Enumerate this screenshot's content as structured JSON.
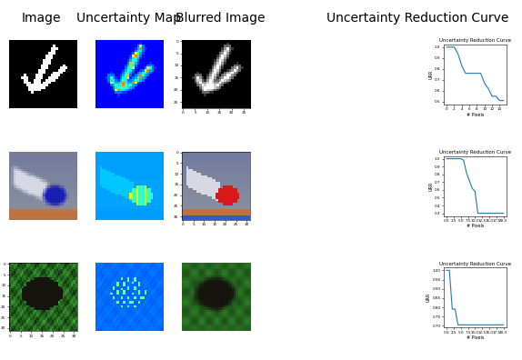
{
  "column_titles": [
    "Image",
    "Uncertainty Map",
    "Blurred Image",
    "Uncertainty Reduction Curve"
  ],
  "chart_data": [
    {
      "type": "image",
      "tick_labels": false
    },
    {
      "type": "image",
      "tick_labels": false
    },
    {
      "type": "image",
      "xlim": [
        -0.5,
        27.5
      ],
      "ylim": [
        27.5,
        -0.5
      ],
      "xticks": [
        0,
        5,
        10,
        15,
        20,
        25
      ],
      "yticks": [
        0,
        5,
        10,
        15,
        20,
        25
      ]
    },
    {
      "type": "line",
      "title": "Uncertainty Reduction Curve",
      "x_label": "# Pixels",
      "y_label": "URR",
      "x": [
        0,
        1,
        2,
        3,
        4,
        5,
        6,
        7,
        8,
        9,
        10,
        11,
        12,
        13,
        14,
        15
      ],
      "values": [
        1.0,
        1.0,
        1.0,
        0.94,
        0.83,
        0.76,
        0.76,
        0.76,
        0.76,
        0.76,
        0.67,
        0.62,
        0.55,
        0.55,
        0.51,
        0.51
      ],
      "color": "#1f77b4",
      "xlim": [
        -0.75,
        15.75
      ],
      "ylim": [
        0.475,
        1.025
      ],
      "xticks": [
        0,
        2,
        4,
        6,
        8,
        10,
        12,
        14
      ],
      "yticks": [
        0.5,
        0.6,
        0.7,
        0.8,
        0.9,
        1.0
      ]
    },
    {
      "type": "image",
      "tick_labels": false
    },
    {
      "type": "image",
      "tick_labels": false
    },
    {
      "type": "image",
      "xlim": [
        -0.5,
        31.5
      ],
      "ylim": [
        31.5,
        -0.5
      ],
      "xticks": [
        0,
        5,
        10,
        15,
        20,
        25,
        30
      ],
      "yticks": [
        0,
        5,
        10,
        15,
        20,
        25,
        30
      ]
    },
    {
      "type": "line",
      "title": "Uncertainty Reduction Curve",
      "x_label": "# Pixels",
      "y_label": "URR",
      "x": [
        0,
        1,
        2,
        3,
        4,
        5,
        6,
        7,
        8,
        9,
        10,
        11,
        12,
        13,
        14,
        15,
        16,
        17,
        18,
        19,
        20
      ],
      "values": [
        1.0,
        1.0,
        1.0,
        1.0,
        1.0,
        1.0,
        0.98,
        0.82,
        0.72,
        0.62,
        0.58,
        0.3,
        0.3,
        0.3,
        0.3,
        0.3,
        0.3,
        0.3,
        0.3,
        0.3,
        0.3
      ],
      "color": "#1f77b4",
      "xlim": [
        -1.0,
        21.0
      ],
      "ylim": [
        0.265,
        1.035
      ],
      "xticks": [
        0.0,
        2.5,
        5.0,
        7.5,
        10.0,
        12.5,
        15.0,
        17.5,
        20.0
      ],
      "yticks": [
        0.3,
        0.4,
        0.5,
        0.6,
        0.7,
        0.8,
        0.9,
        1.0
      ]
    },
    {
      "type": "image",
      "xlim": [
        -0.5,
        31.5
      ],
      "ylim": [
        31.5,
        -0.5
      ],
      "xticks": [
        0,
        5,
        10,
        15,
        20,
        25,
        30
      ],
      "yticks": [
        0,
        5,
        10,
        15,
        20,
        25,
        30
      ]
    },
    {
      "type": "image",
      "tick_labels": false
    },
    {
      "type": "image",
      "tick_labels": false
    },
    {
      "type": "line",
      "title": "Uncertainty Reduction Curve",
      "x_label": "# Pixels",
      "y_label": "URR",
      "x": [
        0,
        1,
        2,
        3,
        4,
        5,
        6,
        7,
        8,
        9,
        10,
        11,
        12,
        13,
        14,
        15,
        16,
        17,
        18,
        19,
        20
      ],
      "values": [
        1.0,
        1.0,
        0.79,
        0.79,
        0.705,
        0.705,
        0.705,
        0.705,
        0.705,
        0.705,
        0.705,
        0.705,
        0.705,
        0.705,
        0.705,
        0.705,
        0.705,
        0.705,
        0.705,
        0.705,
        0.705
      ],
      "color": "#1f77b4",
      "xlim": [
        -1.0,
        21.0
      ],
      "ylim": [
        0.69,
        1.015
      ],
      "xticks": [
        0.0,
        2.5,
        5.0,
        7.5,
        10.0,
        12.5,
        15.0,
        17.5,
        20.0
      ],
      "yticks": [
        {
          "value": 0.7,
          "label": "0.70"
        },
        {
          "value": 0.75,
          "label": "0.75"
        },
        {
          "value": 0.8,
          "label": "0.80"
        },
        {
          "value": 0.85,
          "label": "0.85"
        },
        {
          "value": 0.9,
          "label": "0.90"
        },
        {
          "value": 0.95,
          "label": "0.95"
        },
        {
          "value": 1.0,
          "label": "1.00"
        }
      ]
    }
  ]
}
